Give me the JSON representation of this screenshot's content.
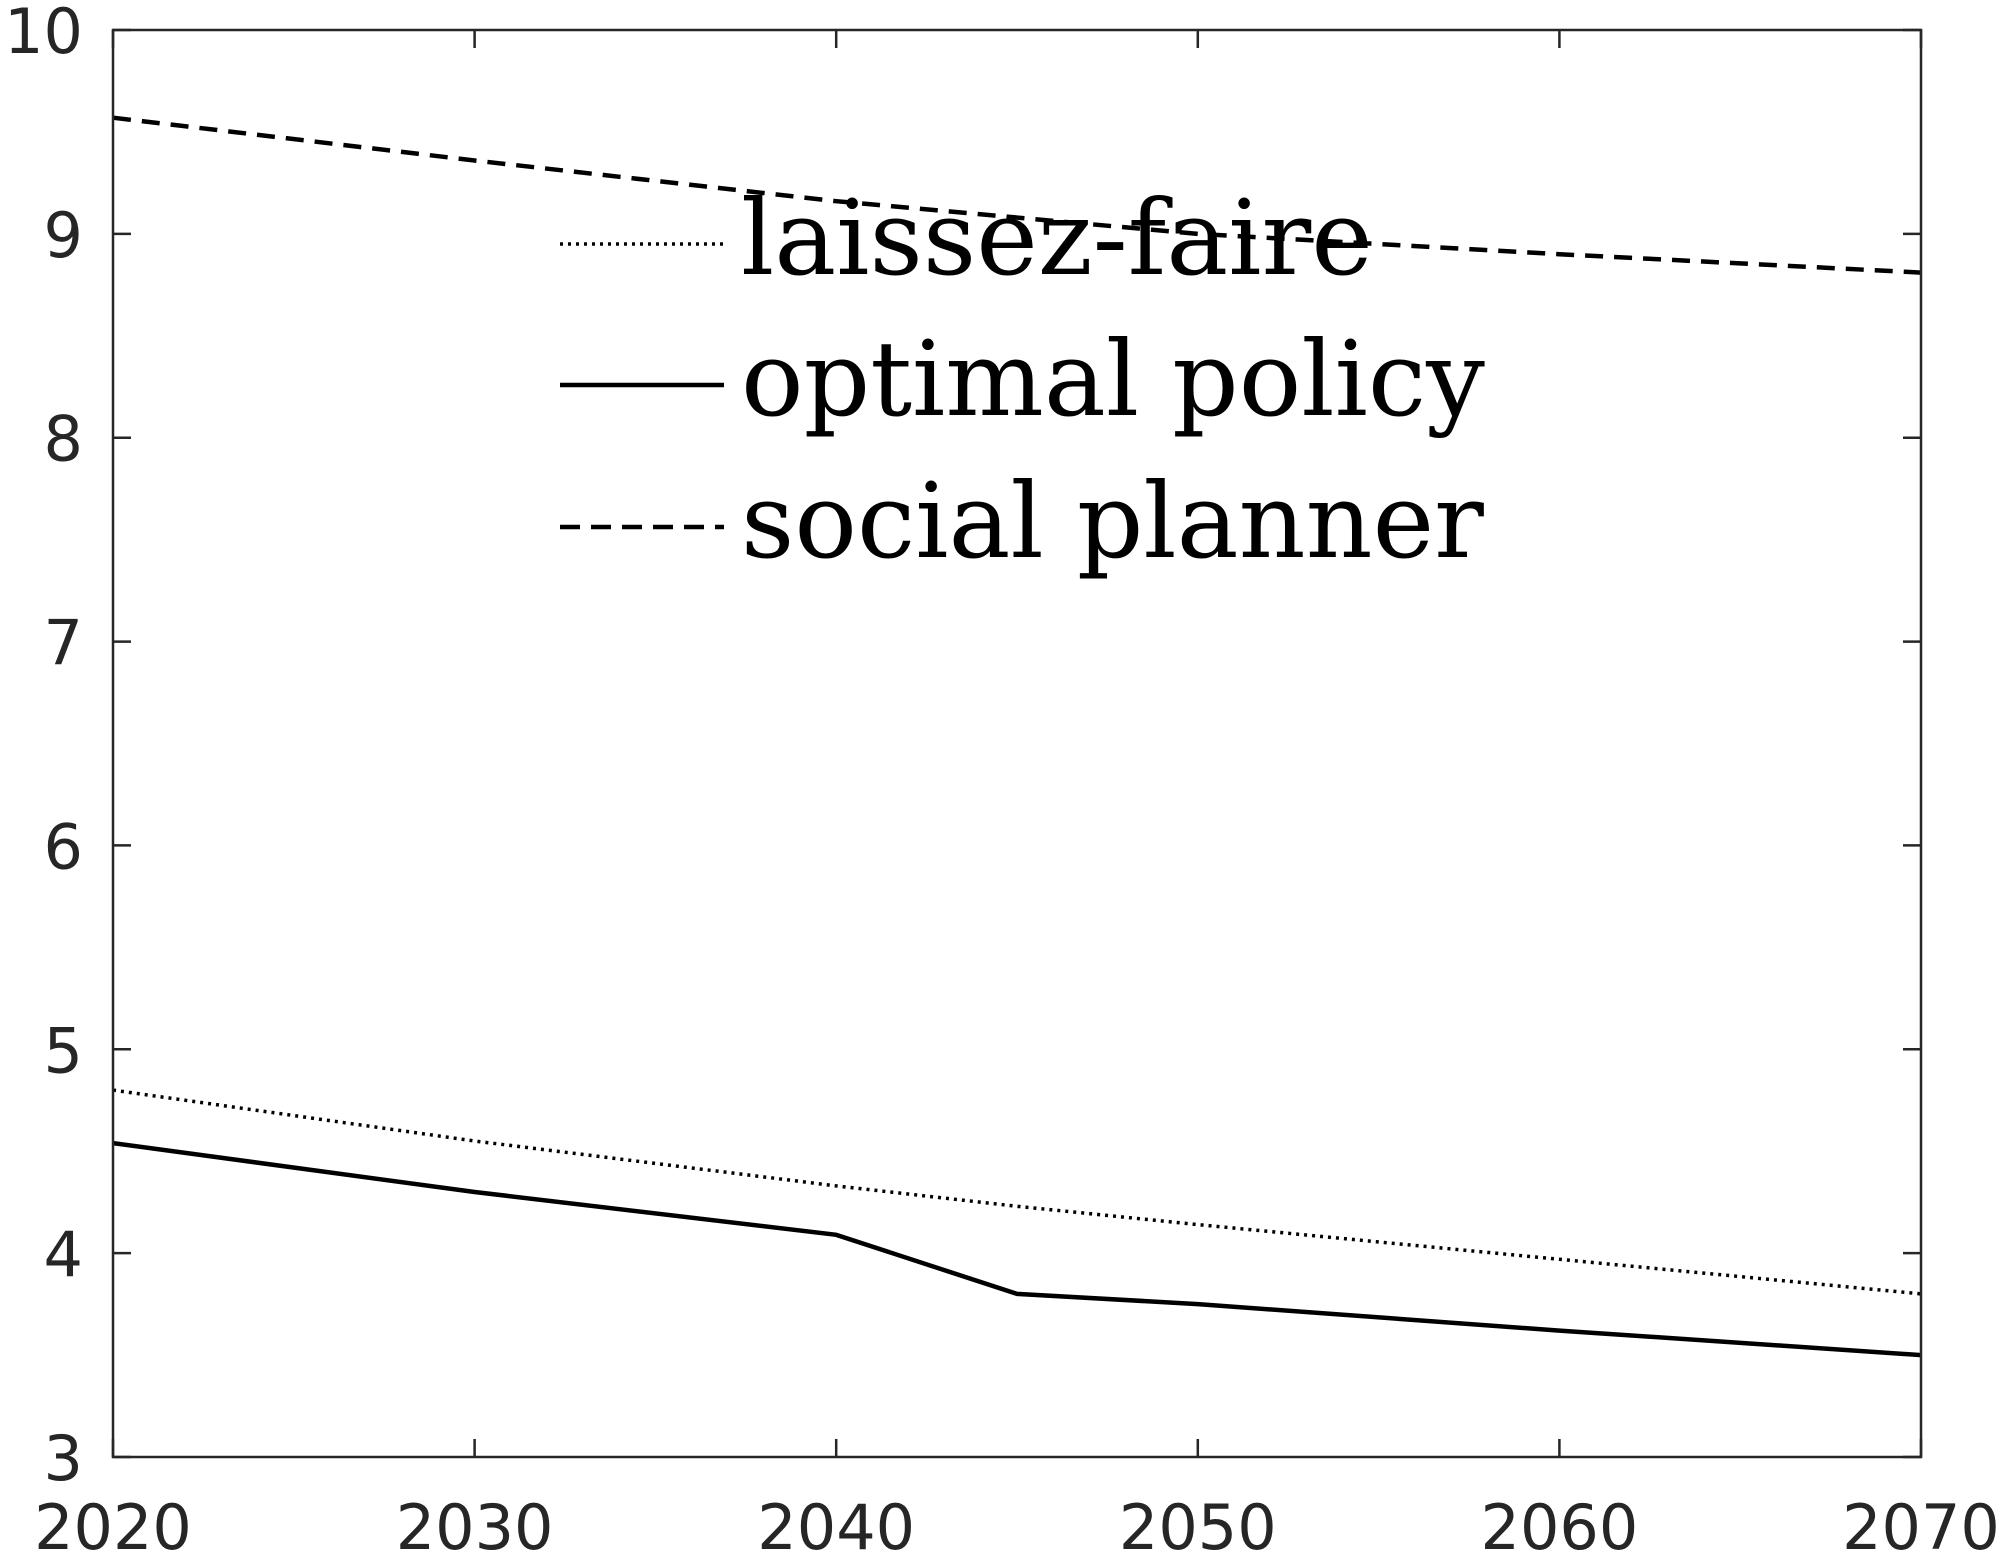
{
  "chart_data": {
    "type": "line",
    "xlim": [
      2020,
      2070
    ],
    "ylim": [
      3,
      10
    ],
    "x_ticks": [
      2020,
      2030,
      2040,
      2050,
      2060,
      2070
    ],
    "y_ticks": [
      3,
      4,
      5,
      6,
      7,
      8,
      9,
      10
    ],
    "grid": false,
    "legend_position": "top-center",
    "series": [
      {
        "name": "laissez-faire",
        "style": "dotted",
        "color": "#000000",
        "points": [
          [
            2020,
            4.8
          ],
          [
            2030,
            4.55
          ],
          [
            2040,
            4.33
          ],
          [
            2045,
            4.23
          ],
          [
            2050,
            4.14
          ],
          [
            2060,
            3.97
          ],
          [
            2070,
            3.8
          ]
        ]
      },
      {
        "name": "optimal policy",
        "style": "solid",
        "color": "#000000",
        "points": [
          [
            2020,
            4.54
          ],
          [
            2030,
            4.3
          ],
          [
            2040,
            4.09
          ],
          [
            2045,
            3.8
          ],
          [
            2050,
            3.75
          ],
          [
            2060,
            3.62
          ],
          [
            2070,
            3.5
          ]
        ]
      },
      {
        "name": "social planner",
        "style": "dashed",
        "color": "#000000",
        "points": [
          [
            2020,
            9.57
          ],
          [
            2030,
            9.36
          ],
          [
            2040,
            9.16
          ],
          [
            2050,
            9.0
          ],
          [
            2060,
            8.9
          ],
          [
            2070,
            8.81
          ]
        ]
      }
    ]
  }
}
